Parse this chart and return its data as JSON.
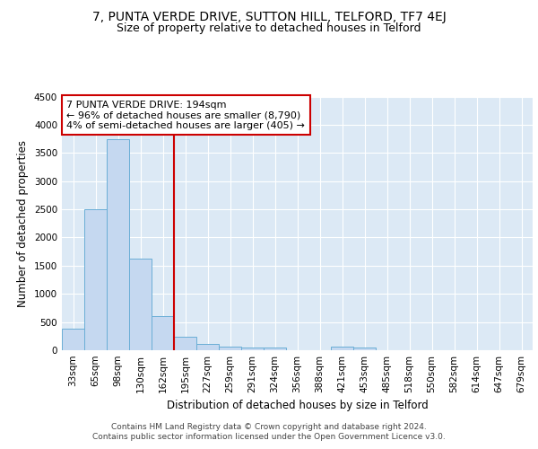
{
  "title": "7, PUNTA VERDE DRIVE, SUTTON HILL, TELFORD, TF7 4EJ",
  "subtitle": "Size of property relative to detached houses in Telford",
  "xlabel": "Distribution of detached houses by size in Telford",
  "ylabel": "Number of detached properties",
  "bar_labels": [
    "33sqm",
    "65sqm",
    "98sqm",
    "130sqm",
    "162sqm",
    "195sqm",
    "227sqm",
    "259sqm",
    "291sqm",
    "324sqm",
    "356sqm",
    "388sqm",
    "421sqm",
    "453sqm",
    "485sqm",
    "518sqm",
    "550sqm",
    "582sqm",
    "614sqm",
    "647sqm",
    "679sqm"
  ],
  "bar_values": [
    375,
    2500,
    3750,
    1625,
    600,
    240,
    110,
    65,
    55,
    55,
    0,
    0,
    65,
    55,
    0,
    0,
    0,
    0,
    0,
    0,
    0
  ],
  "bar_color": "#c5d8f0",
  "bar_edge_color": "#6aaed6",
  "background_color": "#dce9f5",
  "grid_color": "#ffffff",
  "red_line_index": 5,
  "annotation_text1": "7 PUNTA VERDE DRIVE: 194sqm",
  "annotation_text2": "← 96% of detached houses are smaller (8,790)",
  "annotation_text3": "4% of semi-detached houses are larger (405) →",
  "annotation_box_color": "#ffffff",
  "annotation_border_color": "#cc0000",
  "red_line_color": "#cc0000",
  "ylim": [
    0,
    4500
  ],
  "yticks": [
    0,
    500,
    1000,
    1500,
    2000,
    2500,
    3000,
    3500,
    4000,
    4500
  ],
  "footer1": "Contains HM Land Registry data © Crown copyright and database right 2024.",
  "footer2": "Contains public sector information licensed under the Open Government Licence v3.0.",
  "title_fontsize": 10,
  "subtitle_fontsize": 9,
  "ylabel_fontsize": 8.5,
  "xlabel_fontsize": 8.5,
  "tick_fontsize": 7.5,
  "annotation_fontsize": 8,
  "footer_fontsize": 6.5
}
